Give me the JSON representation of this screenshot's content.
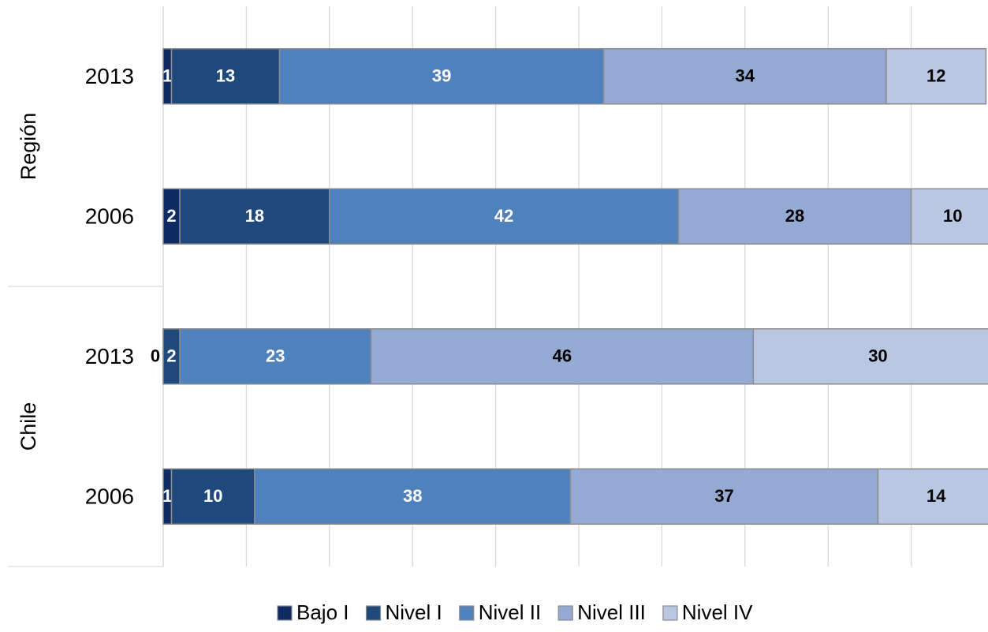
{
  "chart_data": {
    "type": "stacked-barh",
    "groups": [
      {
        "name": "Región",
        "categories": [
          "2013",
          "2006"
        ]
      },
      {
        "name": "Chile",
        "categories": [
          "2013",
          "2006"
        ]
      }
    ],
    "series": [
      {
        "name": "Bajo I",
        "color": "#0e2b66",
        "label_color": "#ffffff",
        "values": [
          1,
          2,
          0,
          1
        ]
      },
      {
        "name": "Nivel I",
        "color": "#1f497d",
        "label_color": "#ffffff",
        "values": [
          13,
          18,
          2,
          10
        ]
      },
      {
        "name": "Nivel II",
        "color": "#4f81bd",
        "label_color": "#ffffff",
        "values": [
          39,
          42,
          23,
          38
        ]
      },
      {
        "name": "Nivel III",
        "color": "#95aad3",
        "label_color": "#000000",
        "values": [
          34,
          28,
          46,
          37
        ]
      },
      {
        "name": "Nivel IV",
        "color": "#b9c7e2",
        "label_color": "#000000",
        "values": [
          12,
          10,
          30,
          14
        ]
      }
    ],
    "xlim": [
      0,
      100
    ],
    "xticks": [
      0,
      10,
      20,
      30,
      40,
      50,
      60,
      70,
      80,
      90,
      100
    ],
    "grid": true,
    "legend": "bottom"
  }
}
